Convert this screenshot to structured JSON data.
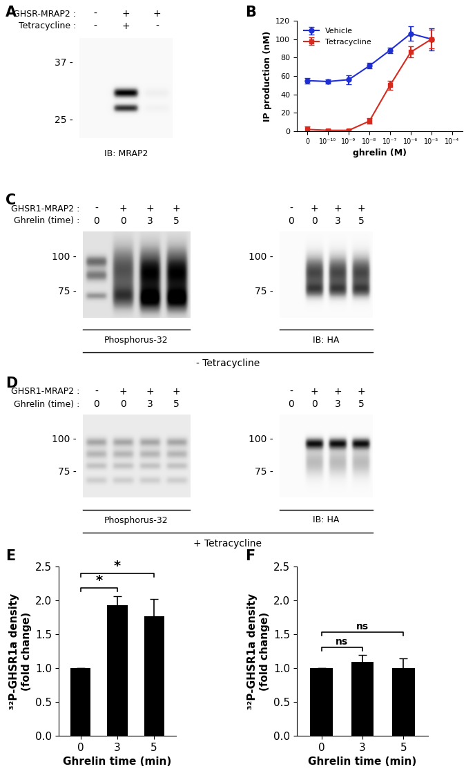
{
  "chart_data": [
    {
      "panel": "B",
      "type": "line",
      "categories": [
        "0",
        "10⁻¹⁰",
        "10⁻⁹",
        "10⁻⁸",
        "10⁻⁷",
        "10⁻⁶",
        "10⁻⁵",
        "10⁻⁴"
      ],
      "series": [
        {
          "name": "Vehicle",
          "color": "#1f2fd6",
          "marker": "circle",
          "line_style": "solid",
          "values": [
            55,
            54,
            56,
            71,
            88,
            106,
            100,
            null
          ],
          "errors": [
            3,
            2,
            5,
            3,
            3,
            8,
            12,
            null
          ]
        },
        {
          "name": "Tetracycline",
          "color": "#d62a1f",
          "marker": "square",
          "line_style": "solid",
          "values": [
            2,
            1,
            1,
            11,
            50,
            86,
            100,
            null
          ],
          "errors": [
            3,
            1,
            1,
            3,
            5,
            6,
            10,
            null
          ]
        }
      ],
      "x_label": "ghrelin (M)",
      "y_label": "IP production (nM)",
      "ylim": [
        0,
        120
      ],
      "yticks": [
        0,
        20,
        40,
        60,
        80,
        100,
        120
      ],
      "legend": "upper left"
    },
    {
      "panel": "E",
      "type": "bar",
      "categories": [
        "0",
        "3",
        "5"
      ],
      "values": [
        1.0,
        1.93,
        1.77
      ],
      "errors": [
        0,
        0.13,
        0.25
      ],
      "color": "#000000",
      "x_label": "Ghrelin time (min)",
      "y_label": "³²P-GHSR1a density\n(fold change)",
      "ylim": [
        0.0,
        2.5
      ],
      "yticks": [
        0.0,
        0.5,
        1.0,
        1.5,
        2.0,
        2.5
      ],
      "comparisons": [
        {
          "from": "0",
          "to": "3",
          "label": "*"
        },
        {
          "from": "0",
          "to": "5",
          "label": "*"
        }
      ]
    },
    {
      "panel": "F",
      "type": "bar",
      "categories": [
        "0",
        "3",
        "5"
      ],
      "values": [
        1.0,
        1.09,
        1.0
      ],
      "errors": [
        0,
        0.1,
        0.14
      ],
      "color": "#000000",
      "x_label": "Ghrelin time (min)",
      "y_label": "³²P-GHSR1a density\n(fold change)",
      "ylim": [
        0.0,
        2.5
      ],
      "yticks": [
        0.0,
        0.5,
        1.0,
        1.5,
        2.0,
        2.5
      ],
      "comparisons": [
        {
          "from": "0",
          "to": "3",
          "label": "ns"
        },
        {
          "from": "0",
          "to": "5",
          "label": "ns"
        }
      ]
    }
  ],
  "blots": [
    {
      "panel": "A",
      "rows": [
        {
          "label": "GHSR-MRAP2 :",
          "values": [
            "-",
            "+",
            "+"
          ]
        },
        {
          "label": "Tetracycline :",
          "values": [
            "-",
            "+",
            "-"
          ]
        }
      ],
      "images": [
        {
          "caption": "IB: MRAP2",
          "ylim": [
            21,
            42
          ],
          "markers": [
            {
              "value": 37,
              "label": "37 -"
            },
            {
              "value": 25,
              "label": "25 -"
            }
          ]
        }
      ]
    },
    {
      "panel": "C",
      "rows": [
        {
          "label": "GHSR1-MRAP2 :",
          "values": [
            "-",
            "+",
            "+",
            "+"
          ]
        },
        {
          "label": "Ghrelin (time) :",
          "values": [
            "0",
            "0",
            "3",
            "5"
          ]
        }
      ],
      "images": [
        {
          "caption": "Phosphorus-32",
          "ylim": [
            55,
            118
          ],
          "markers": [
            {
              "value": 100,
              "label": "100 -"
            },
            {
              "value": 75,
              "label": "75 -"
            }
          ]
        },
        {
          "caption": "IB: HA",
          "ylim": [
            55,
            118
          ],
          "markers": [
            {
              "value": 100,
              "label": "100 -"
            },
            {
              "value": 75,
              "label": "75 -"
            }
          ]
        }
      ],
      "caption": "- Tetracycline"
    },
    {
      "panel": "D",
      "rows": [
        {
          "label": "GHSR1-MRAP2 :",
          "values": [
            "-",
            "+",
            "+",
            "+"
          ]
        },
        {
          "label": "Ghrelin (time) :",
          "values": [
            "0",
            "0",
            "3",
            "5"
          ]
        }
      ],
      "images": [
        {
          "caption": "Phosphorus-32",
          "ylim": [
            55,
            118
          ],
          "markers": [
            {
              "value": 100,
              "label": "100 -"
            },
            {
              "value": 75,
              "label": "75 -"
            }
          ]
        },
        {
          "caption": "IB: HA",
          "ylim": [
            55,
            118
          ],
          "markers": [
            {
              "value": 100,
              "label": "100 -"
            },
            {
              "value": 75,
              "label": "75 -"
            }
          ]
        }
      ],
      "caption": "+ Tetracycline"
    }
  ]
}
